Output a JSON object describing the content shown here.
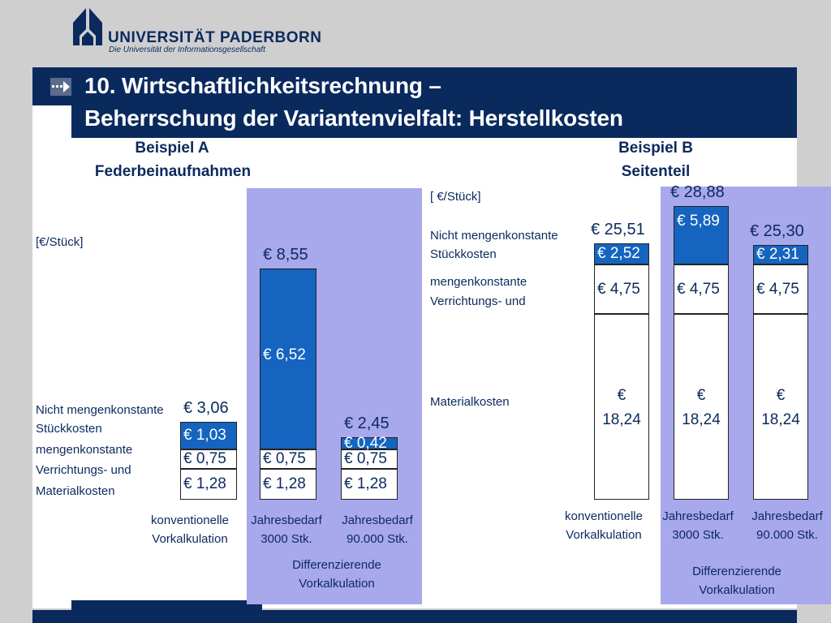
{
  "header": {
    "university_name": "UNIVERSITÄT PADERBORN",
    "university_slogan": "Die Universität der Informationsgesellschaft",
    "title_line1": "10. Wirtschaftlichkeitsrechnung –",
    "title_line2": "Beherrschung der Variantenvielfalt: Herstellkosten"
  },
  "colors": {
    "navy": "#0a2a5e",
    "bar_blue": "#1565c0",
    "highlight_lavender": "#a8a8ec",
    "panel": "#ffffff"
  },
  "icons": {
    "title_marker": "arrow-right-icon",
    "logo": "university-logo-icon"
  },
  "chart_data": [
    {
      "type": "bar",
      "title": "Beispiel A",
      "subtitle": "Federbeinaufnahmen",
      "unit_label": "[€/Stück]",
      "stacked": true,
      "categories": [
        "konventionelle Vorkalkulation",
        "Jahresbedarf 3000 Stk.",
        "Jahresbedarf 90.000 Stk."
      ],
      "group_label": "Differenzierende Vorkalkulation",
      "series": [
        {
          "name": "Materialkosten",
          "values": [
            1.28,
            1.28,
            1.28
          ],
          "labels": [
            "€  1,28",
            "€ 1,28",
            "€ 1,28"
          ]
        },
        {
          "name": "mengenkonstante Verrichtungs- und",
          "values": [
            0.75,
            0.75,
            0.75
          ],
          "labels": [
            "€ 0,75",
            "€ 0,75",
            "€ 0,75"
          ]
        },
        {
          "name": "Nicht mengenkonstante Stückkosten",
          "values": [
            1.03,
            6.52,
            0.42
          ],
          "labels": [
            "€ 1,03",
            "€ 6,52",
            "€ 0,42"
          ]
        }
      ],
      "totals": [
        "€ 3,06",
        "€ 8,55",
        "€ 2,45"
      ],
      "legend_lines": [
        "Nicht mengenkonstante",
        "Stückkosten",
        "mengenkonstante",
        "Verrichtungs- und",
        "Materialkosten"
      ]
    },
    {
      "type": "bar",
      "title": "Beispiel B",
      "subtitle": "Seitenteil",
      "unit_label": "[ €/Stück]",
      "stacked": true,
      "categories": [
        "konventionelle Vorkalkulation",
        "Jahresbedarf 3000 Stk.",
        "Jahresbedarf 90.000 Stk."
      ],
      "group_label": "Differenzierende Vorkalkulation",
      "series": [
        {
          "name": "Materialkosten",
          "values": [
            18.24,
            18.24,
            18.24
          ],
          "labels": [
            "€ 18,24",
            "€ 18,24",
            "€ 18,24"
          ]
        },
        {
          "name": "mengenkonstante Verrichtungs- und",
          "values": [
            4.75,
            4.75,
            4.75
          ],
          "labels": [
            "€ 4,75",
            "€ 4,75",
            "€ 4,75"
          ]
        },
        {
          "name": "Nicht mengenkonstante Stückkosten",
          "values": [
            2.52,
            5.89,
            2.31
          ],
          "labels": [
            "€ 2,52",
            "€ 5,89",
            "€ 2,31"
          ]
        }
      ],
      "totals": [
        "€ 25,51",
        "€ 28,88",
        "€ 25,30"
      ],
      "legend_lines": [
        "Nicht mengenkonstante",
        "Stückkosten",
        "mengenkonstante",
        "Verrichtungs- und",
        "Materialkosten"
      ]
    }
  ]
}
